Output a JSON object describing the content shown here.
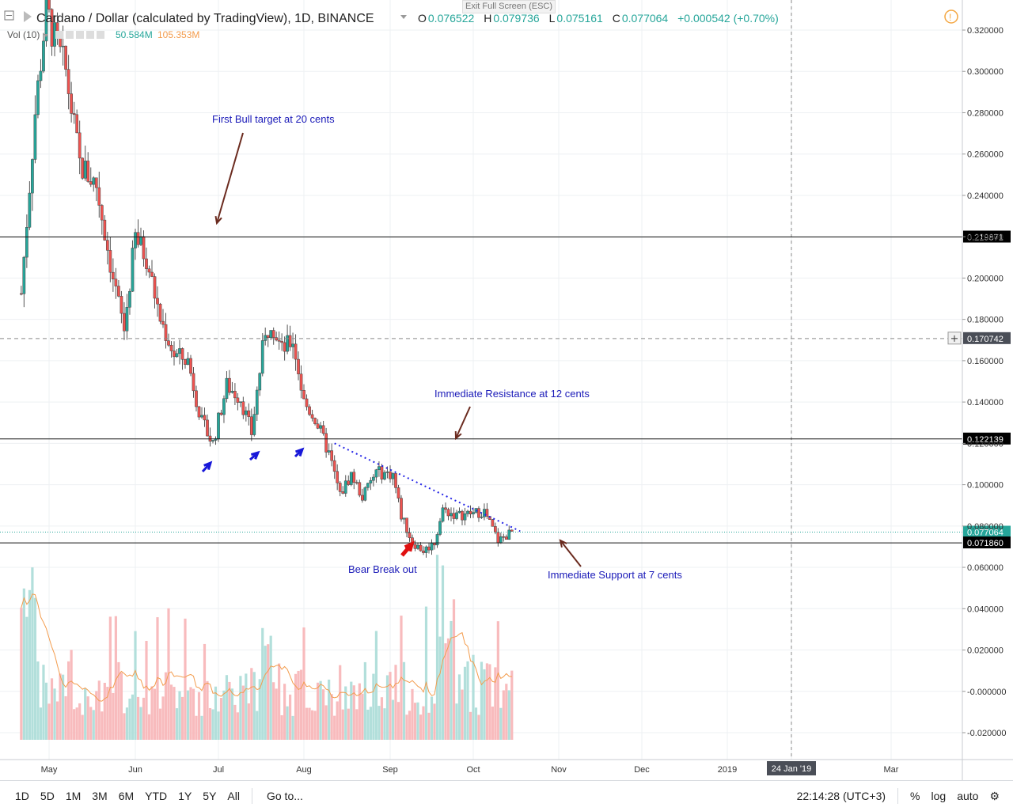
{
  "header": {
    "title": "Cardano / Dollar (calculated by TradingView), 1D, BINANCE",
    "ohlc": {
      "o_label": "O",
      "o_value": "0.076522",
      "h_label": "H",
      "h_value": "0.079736",
      "l_label": "L",
      "l_value": "0.075161",
      "c_label": "C",
      "c_value": "0.077064",
      "change": "+0.000542 (+0.70%)"
    },
    "vol_label": "Vol (10)",
    "vol_value": "50.584M",
    "vol_ma_value": "105.353M",
    "exit_fullscreen": "Exit Full Screen (ESC)"
  },
  "bottom_toolbar": {
    "ranges": [
      "1D",
      "5D",
      "1M",
      "3M",
      "6M",
      "YTD",
      "1Y",
      "5Y",
      "All"
    ],
    "goto": "Go to...",
    "time": "22:14:28 (UTC+3)",
    "percent": "%",
    "log": "log",
    "auto": "auto"
  },
  "chart_data": {
    "type": "candlestick",
    "title": "Cardano / Dollar (calculated by TradingView), 1D, BINANCE",
    "y_ticks": [
      "0.320000",
      "0.300000",
      "0.280000",
      "0.260000",
      "0.240000",
      "0.220000",
      "0.200000",
      "0.180000",
      "0.160000",
      "0.140000",
      "0.120000",
      "0.100000",
      "0.080000",
      "0.060000",
      "0.040000",
      "0.020000",
      "-0.000000",
      "-0.020000"
    ],
    "x_ticks": [
      "May",
      "Jun",
      "Jul",
      "Aug",
      "Sep",
      "Oct",
      "Nov",
      "Dec",
      "2019",
      "24 Jan '19",
      "Mar"
    ],
    "horizontal_lines": [
      {
        "label": "0.219871",
        "value": 0.219871
      },
      {
        "label": "0.170742",
        "value": 0.170742,
        "dashed": true
      },
      {
        "label": "0.122139",
        "value": 0.122139
      },
      {
        "label": "0.077064",
        "value": 0.077064
      },
      {
        "label": "0.071860",
        "value": 0.07186
      }
    ],
    "annotations": [
      {
        "text": "First Bull target at 20 cents"
      },
      {
        "text": "Immediate Resistance at 12 cents"
      },
      {
        "text": "Bear Break out"
      },
      {
        "text": "Immediate Support at 7 cents"
      }
    ],
    "crosshair_date": "24 Jan '19",
    "price_path": [
      {
        "date": "2018-04-22",
        "price": 0.21
      },
      {
        "date": "2018-04-26",
        "price": 0.28
      },
      {
        "date": "2018-04-30",
        "price": 0.33
      },
      {
        "date": "2018-05-03",
        "price": 0.315
      },
      {
        "date": "2018-05-07",
        "price": 0.3
      },
      {
        "date": "2018-05-12",
        "price": 0.255
      },
      {
        "date": "2018-05-18",
        "price": 0.245
      },
      {
        "date": "2018-05-24",
        "price": 0.2
      },
      {
        "date": "2018-05-28",
        "price": 0.175
      },
      {
        "date": "2018-06-01",
        "price": 0.22
      },
      {
        "date": "2018-06-05",
        "price": 0.21
      },
      {
        "date": "2018-06-10",
        "price": 0.18
      },
      {
        "date": "2018-06-15",
        "price": 0.163
      },
      {
        "date": "2018-06-20",
        "price": 0.16
      },
      {
        "date": "2018-06-25",
        "price": 0.13
      },
      {
        "date": "2018-06-29",
        "price": 0.12
      },
      {
        "date": "2018-07-04",
        "price": 0.148
      },
      {
        "date": "2018-07-09",
        "price": 0.142
      },
      {
        "date": "2018-07-13",
        "price": 0.125
      },
      {
        "date": "2018-07-17",
        "price": 0.165
      },
      {
        "date": "2018-07-20",
        "price": 0.18
      },
      {
        "date": "2018-07-24",
        "price": 0.165
      },
      {
        "date": "2018-07-28",
        "price": 0.17
      },
      {
        "date": "2018-08-01",
        "price": 0.14
      },
      {
        "date": "2018-08-05",
        "price": 0.132
      },
      {
        "date": "2018-08-10",
        "price": 0.115
      },
      {
        "date": "2018-08-14",
        "price": 0.095
      },
      {
        "date": "2018-08-18",
        "price": 0.105
      },
      {
        "date": "2018-08-22",
        "price": 0.094
      },
      {
        "date": "2018-08-27",
        "price": 0.106
      },
      {
        "date": "2018-09-02",
        "price": 0.105
      },
      {
        "date": "2018-09-05",
        "price": 0.085
      },
      {
        "date": "2018-09-09",
        "price": 0.072
      },
      {
        "date": "2018-09-13",
        "price": 0.068
      },
      {
        "date": "2018-09-17",
        "price": 0.072
      },
      {
        "date": "2018-09-20",
        "price": 0.088
      },
      {
        "date": "2018-09-25",
        "price": 0.085
      },
      {
        "date": "2018-09-30",
        "price": 0.086
      },
      {
        "date": "2018-10-05",
        "price": 0.087
      },
      {
        "date": "2018-10-10",
        "price": 0.073
      },
      {
        "date": "2018-10-15",
        "price": 0.077
      }
    ]
  },
  "colors": {
    "up": "#26a69a",
    "down": "#ef5350",
    "vol_up": "#b2dfdb",
    "vol_down": "#f8bbbd",
    "vol_ma": "#f39c4d",
    "annotation_text": "#1a1ab8",
    "trendline": "#2424e6",
    "arrow_brown": "#6b2b1f"
  }
}
